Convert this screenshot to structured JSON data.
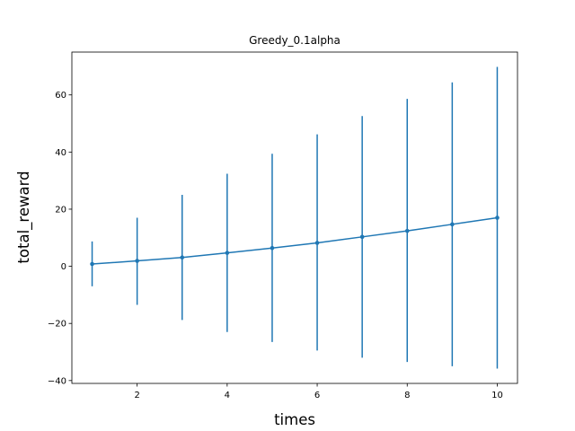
{
  "chart_data": {
    "type": "line",
    "title": "Greedy_0.1alpha",
    "xlabel": "times",
    "ylabel": "total_reward",
    "xlim": [
      0.55,
      10.45
    ],
    "ylim": [
      -41,
      75
    ],
    "xticks": [
      2,
      4,
      6,
      8,
      10
    ],
    "yticks": [
      -40,
      -20,
      0,
      20,
      40,
      60
    ],
    "grid": false,
    "legend": "none",
    "series": [
      {
        "color": "#1f77b4",
        "x": [
          1,
          2,
          3,
          4,
          5,
          6,
          7,
          8,
          9,
          10
        ],
        "y": [
          0.8,
          1.9,
          3.1,
          4.7,
          6.4,
          8.2,
          10.3,
          12.4,
          14.7,
          17.0
        ],
        "err_low": [
          -7.0,
          -13.5,
          -18.8,
          -23.0,
          -26.5,
          -29.5,
          -32.0,
          -33.5,
          -35.0,
          -35.8
        ],
        "err_high": [
          8.7,
          17.0,
          25.0,
          32.4,
          39.4,
          46.2,
          52.6,
          58.6,
          64.4,
          69.8
        ]
      }
    ]
  }
}
